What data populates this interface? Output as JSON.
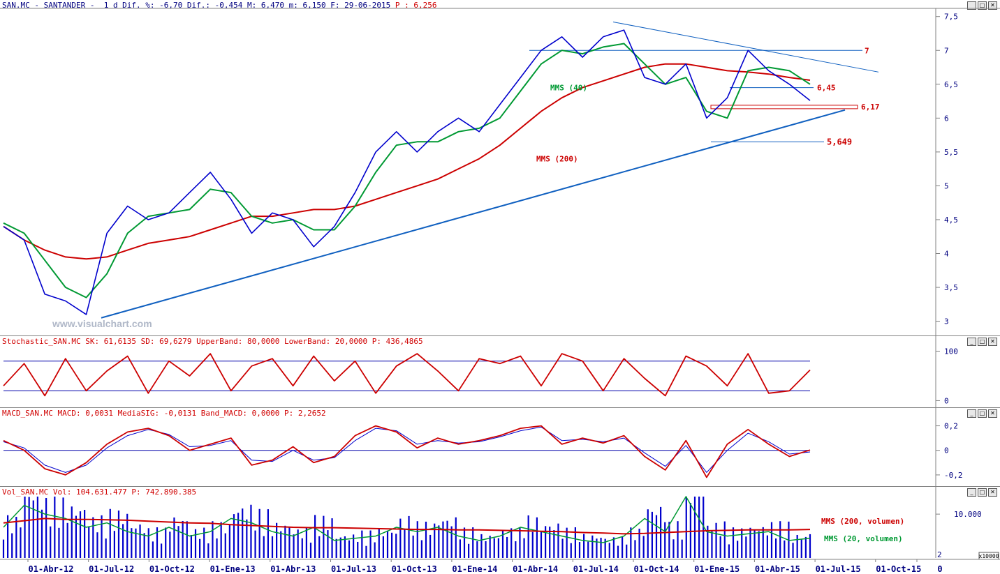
{
  "headers": {
    "price": {
      "label": "SAN.MC - SANTANDER -  1 d Dif. %: -6,70 Dif.: -0,454 M: 6,470 m: 6,150 F: 29-06-2015 ",
      "p_label": "P : 6,256"
    },
    "stochastic": "Stochastic_SAN.MC SK: 61,6135 SD: 69,6279 UpperBand: 80,0000 LowerBand: 20,0000 P: 436,4865",
    "macd": "MACD_SAN.MC MACD: 0,0031 MediaSIG: -0,0131 Band_MACD: 0,0000 P: 2,2652",
    "volume": "Vol_SAN.MC Vol: 104.631.477 P: 742.890.385"
  },
  "watermark": "www.visualchart.com",
  "window_buttons": [
    "_",
    "□",
    "✕"
  ],
  "colors": {
    "price": "#0000cc",
    "mms200": "#cc0000",
    "mms40": "#009933",
    "trend": "#1060c0",
    "axis_text": "#000080"
  },
  "x_axis": {
    "labels": [
      "01-Abr-12",
      "01-Jul-12",
      "01-Oct-12",
      "01-Ene-13",
      "01-Abr-13",
      "01-Jul-13",
      "01-Oct-13",
      "01-Ene-14",
      "01-Abr-14",
      "01-Jul-14",
      "01-Oct-14",
      "01-Ene-15",
      "01-Abr-15",
      "01-Jul-15",
      "01-Oct-15",
      "0"
    ]
  },
  "chart_data": [
    {
      "type": "line",
      "name": "price",
      "y_ticks": [
        "7,5",
        "7",
        "6,5",
        "6",
        "5,5",
        "5",
        "4,5",
        "4",
        "3,5",
        "3"
      ],
      "ylim": [
        2.8,
        7.6
      ],
      "x": [
        "2012-03",
        "2012-04",
        "2012-05",
        "2012-06",
        "2012-07",
        "2012-08",
        "2012-09",
        "2012-10",
        "2012-11",
        "2012-12",
        "2013-01",
        "2013-02",
        "2013-03",
        "2013-04",
        "2013-05",
        "2013-06",
        "2013-07",
        "2013-08",
        "2013-09",
        "2013-10",
        "2013-11",
        "2013-12",
        "2014-01",
        "2014-02",
        "2014-03",
        "2014-04",
        "2014-05",
        "2014-06",
        "2014-07",
        "2014-08",
        "2014-09",
        "2014-10",
        "2014-11",
        "2014-12",
        "2015-01",
        "2015-02",
        "2015-03",
        "2015-04",
        "2015-05",
        "2015-06"
      ],
      "series": [
        {
          "values": [
            4.4,
            4.2,
            3.4,
            3.3,
            3.1,
            4.3,
            4.7,
            4.5,
            4.6,
            4.9,
            5.2,
            4.8,
            4.3,
            4.6,
            4.5,
            4.1,
            4.4,
            4.9,
            5.5,
            5.8,
            5.5,
            5.8,
            6.0,
            5.8,
            6.2,
            6.6,
            7.0,
            7.2,
            6.9,
            7.2,
            7.3,
            6.6,
            6.5,
            6.8,
            6.0,
            6.3,
            7.0,
            6.7,
            6.5,
            6.26
          ]
        },
        {
          "name": "MMS (40)",
          "values": [
            4.45,
            4.3,
            3.9,
            3.5,
            3.35,
            3.7,
            4.3,
            4.55,
            4.6,
            4.65,
            4.95,
            4.9,
            4.55,
            4.45,
            4.5,
            4.35,
            4.35,
            4.7,
            5.2,
            5.6,
            5.65,
            5.65,
            5.8,
            5.85,
            6.0,
            6.4,
            6.8,
            7.0,
            6.95,
            7.05,
            7.1,
            6.8,
            6.5,
            6.6,
            6.1,
            6.0,
            6.7,
            6.75,
            6.7,
            6.5
          ]
        },
        {
          "name": "MMS (200)",
          "values": [
            4.4,
            4.2,
            4.05,
            3.95,
            3.92,
            3.95,
            4.05,
            4.15,
            4.2,
            4.25,
            4.35,
            4.45,
            4.55,
            4.55,
            4.6,
            4.65,
            4.65,
            4.7,
            4.8,
            4.9,
            5.0,
            5.1,
            5.25,
            5.4,
            5.6,
            5.85,
            6.1,
            6.3,
            6.45,
            6.55,
            6.65,
            6.75,
            6.8,
            6.8,
            6.75,
            6.7,
            6.68,
            6.65,
            6.6,
            6.56
          ]
        }
      ],
      "annotations": [
        {
          "text": "7",
          "y": 7.0
        },
        {
          "text": "6,45",
          "y": 6.45
        },
        {
          "text": "6,17",
          "y": 6.17
        },
        {
          "text": "5,649",
          "y": 5.649
        },
        {
          "text": "MMS (40)"
        },
        {
          "text": "MMS (200)"
        }
      ]
    },
    {
      "type": "line",
      "name": "stochastic",
      "y_ticks": [
        "100",
        "0"
      ],
      "ylim": [
        -5,
        105
      ],
      "bands": [
        80,
        20
      ],
      "series": [
        {
          "values": [
            30,
            75,
            10,
            85,
            20,
            60,
            90,
            15,
            80,
            50,
            95,
            20,
            70,
            85,
            30,
            90,
            40,
            80,
            15,
            70,
            95,
            60,
            20,
            85,
            75,
            90,
            30,
            95,
            80,
            20,
            85,
            45,
            10,
            90,
            70,
            30,
            95,
            15,
            20,
            62
          ]
        }
      ]
    },
    {
      "type": "line",
      "name": "macd",
      "y_ticks": [
        "0,2",
        "0",
        "-0,2"
      ],
      "ylim": [
        -0.28,
        0.26
      ],
      "series": [
        {
          "name": "MACD",
          "values": [
            0.08,
            0.0,
            -0.15,
            -0.2,
            -0.1,
            0.05,
            0.15,
            0.18,
            0.12,
            0.0,
            0.05,
            0.1,
            -0.12,
            -0.08,
            0.03,
            -0.1,
            -0.05,
            0.12,
            0.2,
            0.15,
            0.02,
            0.1,
            0.05,
            0.08,
            0.12,
            0.18,
            0.2,
            0.05,
            0.1,
            0.06,
            0.12,
            -0.05,
            -0.16,
            0.08,
            -0.22,
            0.05,
            0.17,
            0.05,
            -0.05,
            0.003
          ]
        },
        {
          "name": "MediaSIG",
          "values": [
            0.07,
            0.02,
            -0.12,
            -0.18,
            -0.12,
            0.02,
            0.12,
            0.17,
            0.13,
            0.03,
            0.04,
            0.08,
            -0.08,
            -0.09,
            0.0,
            -0.08,
            -0.06,
            0.08,
            0.18,
            0.16,
            0.05,
            0.08,
            0.06,
            0.07,
            0.11,
            0.16,
            0.19,
            0.08,
            0.09,
            0.07,
            0.1,
            -0.02,
            -0.13,
            0.04,
            -0.18,
            0.0,
            0.14,
            0.07,
            -0.03,
            -0.013
          ]
        }
      ]
    },
    {
      "type": "bar",
      "name": "volume",
      "y_ticks": [
        "10.000",
        "2"
      ],
      "unit": "x10000",
      "ylim": [
        0,
        14000
      ],
      "series": [
        {
          "name": "MMS (200, volumen)",
          "values": [
            8000,
            8500,
            9000,
            8800,
            8800,
            8700,
            8600,
            8400,
            8200,
            8000,
            7900,
            7600,
            7400,
            7200,
            7000,
            6900,
            6900,
            6800,
            6700,
            6600,
            6500,
            6500,
            6400,
            6400,
            6300,
            6200,
            6100,
            6000,
            5800,
            5700,
            5500,
            5600,
            5800,
            6000,
            6200,
            6300,
            6400,
            6400,
            6400,
            6500
          ]
        },
        {
          "name": "MMS (20, volumen)",
          "values": [
            7000,
            12000,
            10000,
            9000,
            7000,
            8000,
            6000,
            5000,
            7000,
            5000,
            6000,
            9000,
            8000,
            6000,
            5000,
            7000,
            4000,
            4500,
            5000,
            7000,
            6000,
            7000,
            5000,
            4000,
            5000,
            7000,
            6000,
            5000,
            4000,
            3500,
            5000,
            9000,
            6000,
            14000,
            6000,
            5000,
            5500,
            6000,
            4000,
            4500
          ]
        }
      ],
      "annotations": [
        {
          "text": "MMS (200, volumen)"
        },
        {
          "text": "MMS (20, volumen)"
        }
      ]
    }
  ]
}
